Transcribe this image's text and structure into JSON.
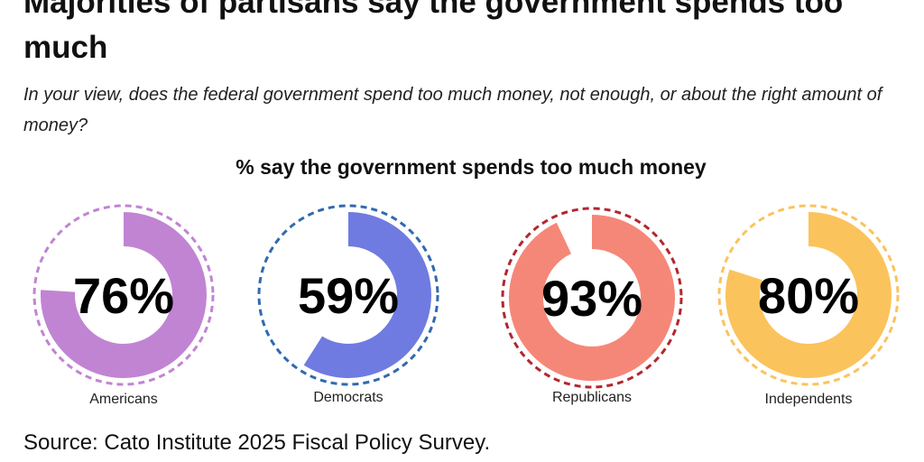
{
  "header": {
    "title": "Majorities of partisans say the government spends too much",
    "subtitle": "In your view, does the federal government spend too much money, not enough, or about the right amount of money?"
  },
  "chart_data": {
    "type": "pie",
    "title": "% say the government spends too much money",
    "subtitle": "",
    "categories": [
      "Americans",
      "Democrats",
      "Republicans",
      "Independents"
    ],
    "values": [
      76,
      59,
      93,
      80
    ],
    "value_labels": [
      "76%",
      "59%",
      "93%",
      "80%"
    ],
    "series": [
      {
        "name": "Americans",
        "value": 76,
        "label": "76%",
        "color": "#c184d3"
      },
      {
        "name": "Democrats",
        "value": 59,
        "label": "59%",
        "color": "#6f7be1"
      },
      {
        "name": "Republicans",
        "value": 93,
        "label": "93%",
        "color": "#f58778"
      },
      {
        "name": "Independents",
        "value": 80,
        "label": "80%",
        "color": "#fbc35c"
      }
    ],
    "outline_colors": [
      "#c184d3",
      "#2f6ab0",
      "#b3262e",
      "#fbc35c"
    ],
    "max_value": 100,
    "legend": "none",
    "xlabel": "",
    "ylabel": ""
  },
  "footer": {
    "source": "Source: Cato Institute 2025 Fiscal Policy Survey."
  }
}
